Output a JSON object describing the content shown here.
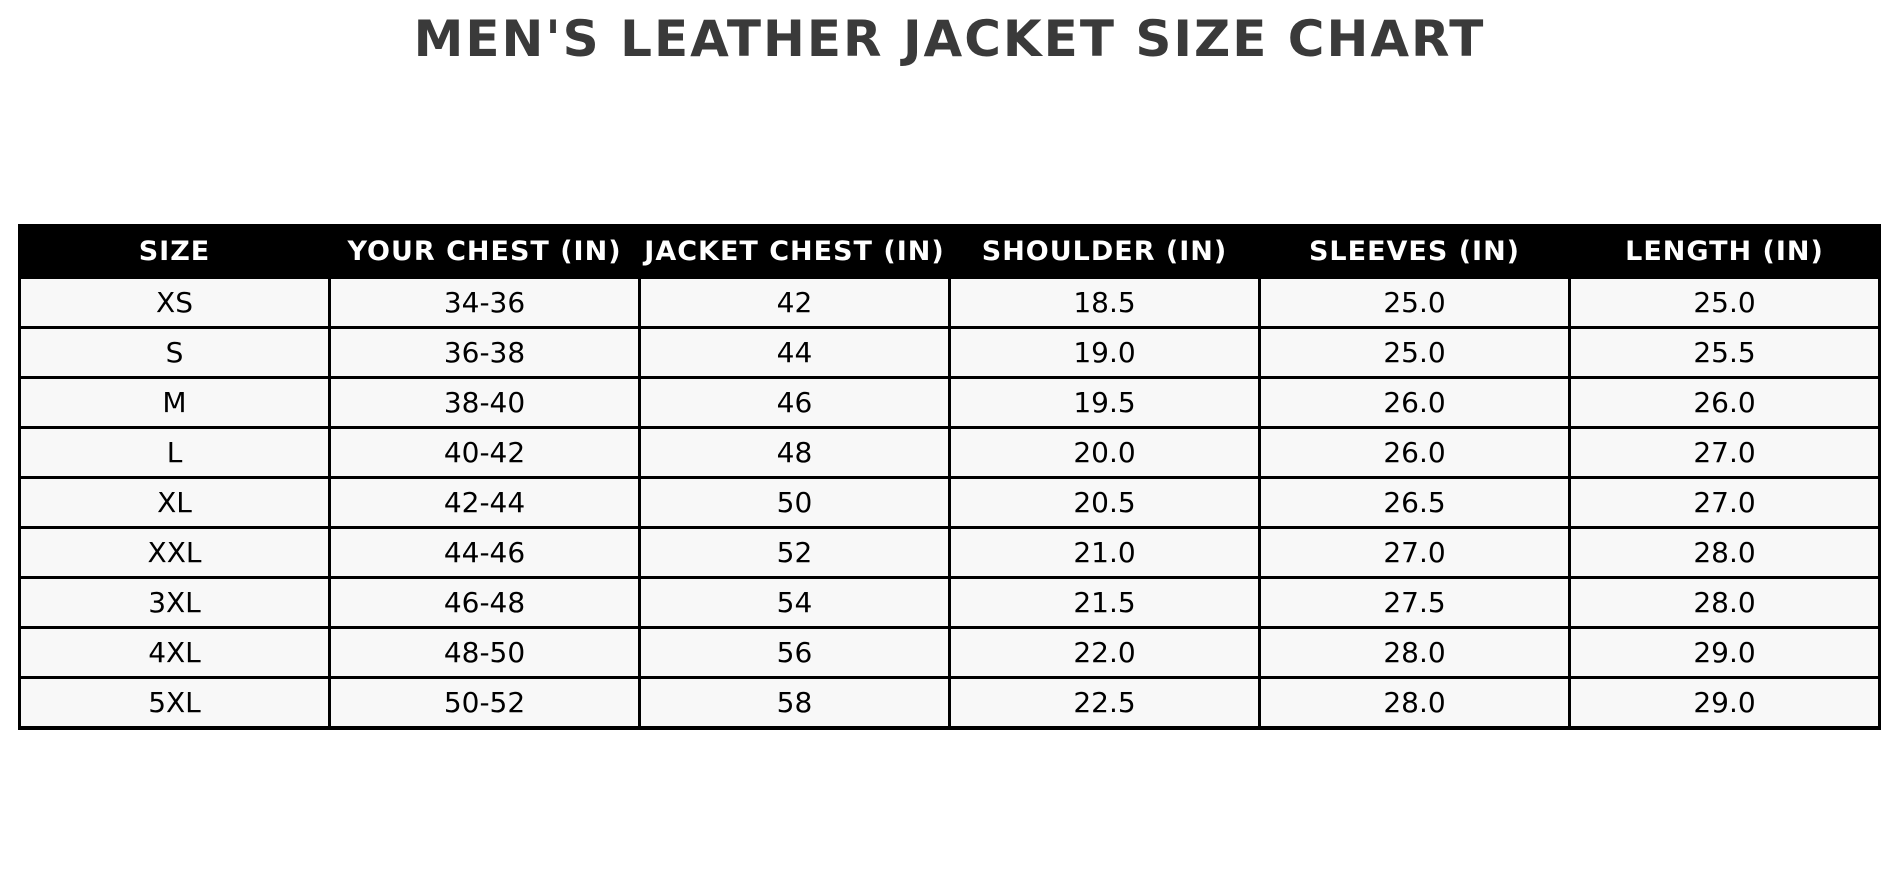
{
  "page": {
    "title": "MEN'S LEATHER JACKET SIZE CHART"
  },
  "chart_data": {
    "type": "table",
    "title": "MEN'S LEATHER JACKET SIZE CHART",
    "columns": [
      "SIZE",
      "YOUR CHEST (IN)",
      "JACKET CHEST (IN)",
      "SHOULDER (IN)",
      "SLEEVES (IN)",
      "LENGTH (IN)"
    ],
    "rows": [
      [
        "XS",
        "34-36",
        "42",
        "18.5",
        "25.0",
        "25.0"
      ],
      [
        "S",
        "36-38",
        "44",
        "19.0",
        "25.0",
        "25.5"
      ],
      [
        "M",
        "38-40",
        "46",
        "19.5",
        "26.0",
        "26.0"
      ],
      [
        "L",
        "40-42",
        "48",
        "20.0",
        "26.0",
        "27.0"
      ],
      [
        "XL",
        "42-44",
        "50",
        "20.5",
        "26.5",
        "27.0"
      ],
      [
        "XXL",
        "44-46",
        "52",
        "21.0",
        "27.0",
        "28.0"
      ],
      [
        "3XL",
        "46-48",
        "54",
        "21.5",
        "27.5",
        "28.0"
      ],
      [
        "4XL",
        "48-50",
        "56",
        "22.0",
        "28.0",
        "29.0"
      ],
      [
        "5XL",
        "50-52",
        "58",
        "22.5",
        "28.0",
        "29.0"
      ]
    ],
    "layout": {
      "header_position": "top",
      "grid": true,
      "text_align": "center"
    },
    "colors": {
      "page_bg": "#ffffff",
      "title_text": "#3a3a3a",
      "header_bg": "#000000",
      "header_text": "#ffffff",
      "row_bg": "#f8f8f8",
      "border": "#000000"
    }
  }
}
